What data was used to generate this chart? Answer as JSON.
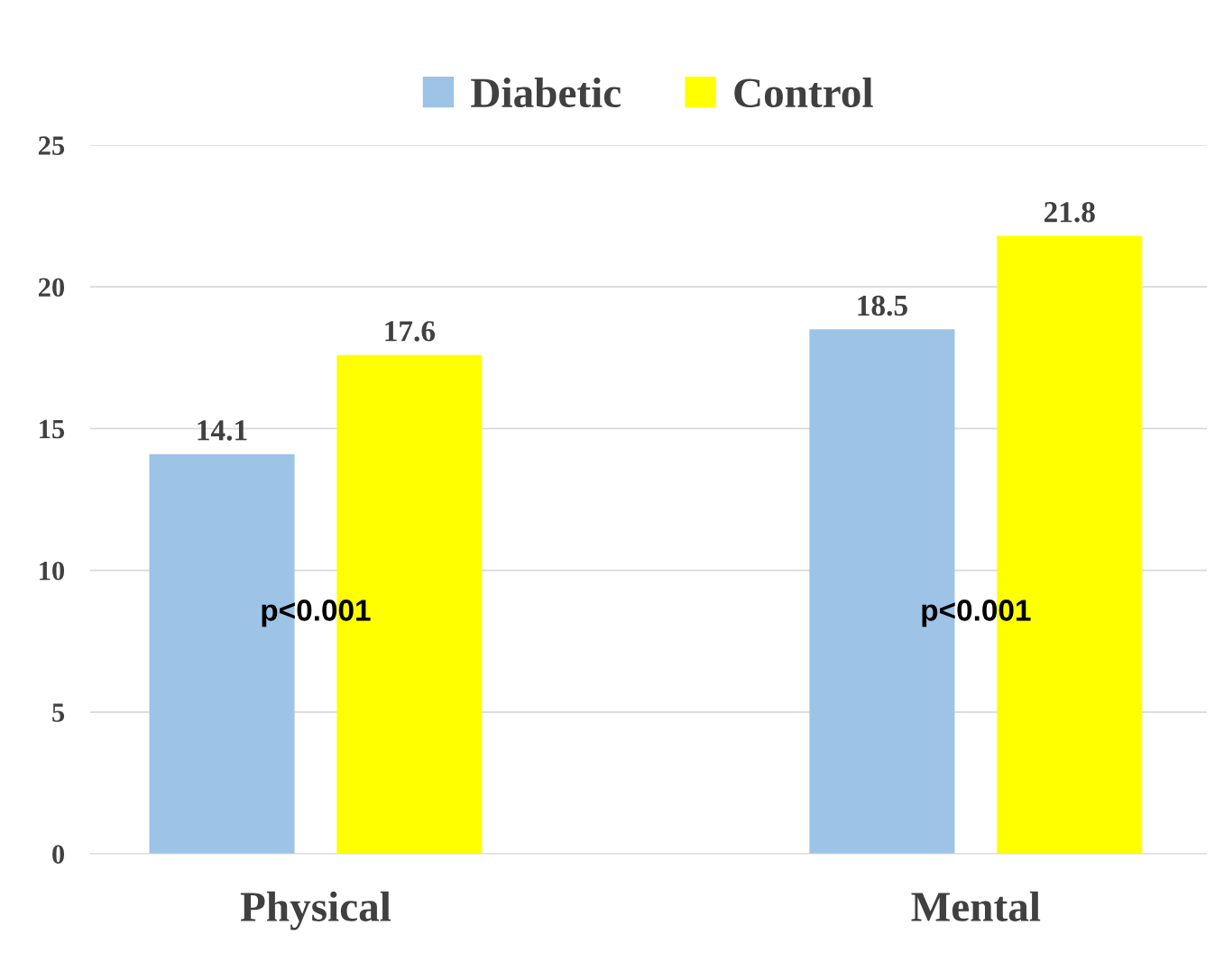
{
  "chart_data": {
    "type": "bar",
    "categories": [
      "Physical",
      "Mental"
    ],
    "series": [
      {
        "name": "Diabetic",
        "color": "#9dc3e6",
        "values": [
          14.1,
          18.5
        ]
      },
      {
        "name": "Control",
        "color": "#ffff00",
        "values": [
          17.6,
          21.8
        ]
      }
    ],
    "ylim": [
      0,
      25
    ],
    "yticks": [
      0,
      5,
      10,
      15,
      20,
      25
    ],
    "grid": "y",
    "legend": "top",
    "data_labels": true,
    "annotations": [
      "p<0.001",
      "p<0.001"
    ]
  }
}
